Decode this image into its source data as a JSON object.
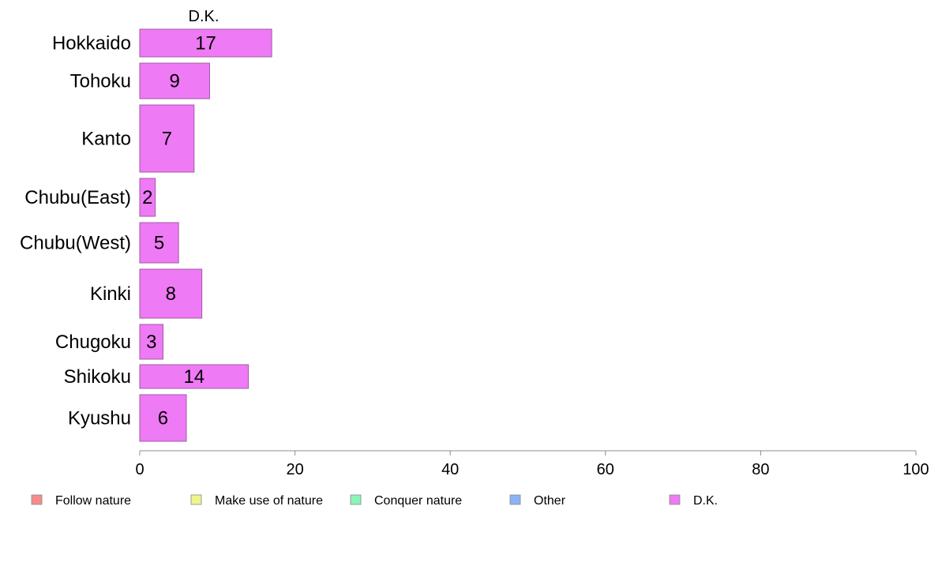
{
  "chart_data": {
    "type": "bar",
    "orientation": "horizontal",
    "title": "D.K.",
    "categories": [
      "Hokkaido",
      "Tohoku",
      "Kanto",
      "Chubu(East)",
      "Chubu(West)",
      "Kinki",
      "Chugoku",
      "Shikoku",
      "Kyushu"
    ],
    "series": [
      {
        "name": "D.K.",
        "values": [
          17,
          9,
          7,
          2,
          5,
          8,
          3,
          14,
          6
        ]
      }
    ],
    "xlim": [
      0,
      100
    ],
    "xticks": [
      0,
      20,
      40,
      60,
      80,
      100
    ],
    "xlabel": "",
    "ylabel": "",
    "grid": false,
    "legend_position": "bottom",
    "legend": [
      {
        "label": "Follow nature",
        "color": "#f88b8b"
      },
      {
        "label": "Make use of nature",
        "color": "#eef58a"
      },
      {
        "label": "Conquer nature",
        "color": "#8af5b5"
      },
      {
        "label": "Other",
        "color": "#8ab5f5"
      },
      {
        "label": "D.K.",
        "color": "#ef7af5"
      }
    ],
    "bar_color": "#ef7af5",
    "bar_stroke": "#a05aa5"
  }
}
